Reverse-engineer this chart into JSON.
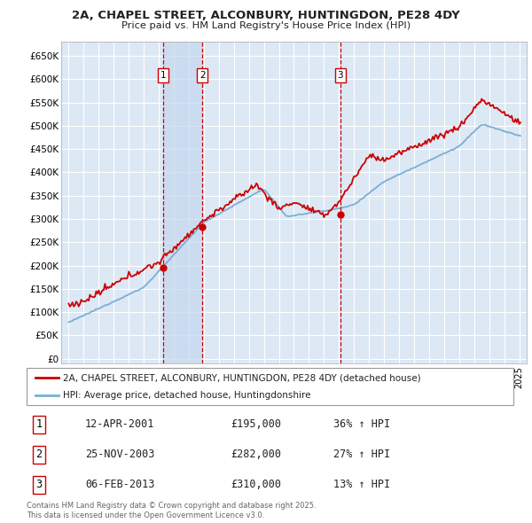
{
  "title": "2A, CHAPEL STREET, ALCONBURY, HUNTINGDON, PE28 4DY",
  "subtitle": "Price paid vs. HM Land Registry's House Price Index (HPI)",
  "ylabel_ticks": [
    "£0",
    "£50K",
    "£100K",
    "£150K",
    "£200K",
    "£250K",
    "£300K",
    "£350K",
    "£400K",
    "£450K",
    "£500K",
    "£550K",
    "£600K",
    "£650K"
  ],
  "ytick_values": [
    0,
    50000,
    100000,
    150000,
    200000,
    250000,
    300000,
    350000,
    400000,
    450000,
    500000,
    550000,
    600000,
    650000
  ],
  "background_color": "#ffffff",
  "plot_bg_color": "#dde8f5",
  "grid_color": "#ffffff",
  "red_line_color": "#cc0000",
  "blue_line_color": "#7bafd4",
  "shade_color": "#c5d8ee",
  "sale_markers": [
    {
      "label": "1",
      "year": 2001.28,
      "price": 195000
    },
    {
      "label": "2",
      "year": 2003.9,
      "price": 282000
    },
    {
      "label": "3",
      "year": 2013.09,
      "price": 310000
    }
  ],
  "legend_entries": [
    {
      "label": "2A, CHAPEL STREET, ALCONBURY, HUNTINGDON, PE28 4DY (detached house)",
      "color": "#cc0000"
    },
    {
      "label": "HPI: Average price, detached house, Huntingdonshire",
      "color": "#7bafd4"
    }
  ],
  "table_entries": [
    {
      "num": "1",
      "date": "12-APR-2001",
      "price": "£195,000",
      "change": "36% ↑ HPI"
    },
    {
      "num": "2",
      "date": "25-NOV-2003",
      "price": "£282,000",
      "change": "27% ↑ HPI"
    },
    {
      "num": "3",
      "date": "06-FEB-2013",
      "price": "£310,000",
      "change": "13% ↑ HPI"
    }
  ],
  "footer": "Contains HM Land Registry data © Crown copyright and database right 2025.\nThis data is licensed under the Open Government Licence v3.0.",
  "xlim": [
    1994.5,
    2025.5
  ],
  "ylim": [
    -10000,
    680000
  ],
  "xstart": 1995,
  "xend": 2025
}
